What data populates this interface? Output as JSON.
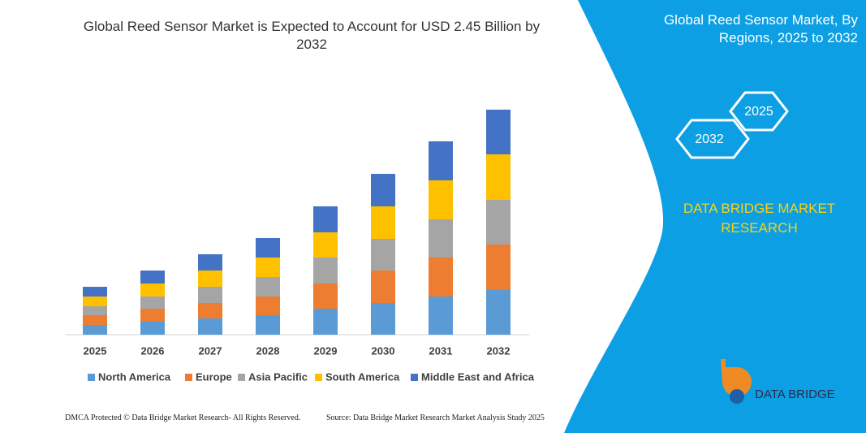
{
  "chart_data": {
    "type": "stacked_bar",
    "title": "Global Reed Sensor Market is Expected to Account for USD 2.45 Billion by 2032",
    "categories": [
      "2025",
      "2026",
      "2027",
      "2028",
      "2029",
      "2030",
      "2031",
      "2032"
    ],
    "series": [
      {
        "name": "North America",
        "color": "#5b9bd5",
        "values": [
          12,
          16,
          20,
          24,
          32,
          39,
          47,
          55
        ]
      },
      {
        "name": "Europe",
        "color": "#ed7d31",
        "values": [
          12,
          16,
          19,
          23,
          31,
          40,
          48,
          56
        ]
      },
      {
        "name": "Asia Pacific",
        "color": "#a5a5a5",
        "values": [
          11,
          15,
          20,
          24,
          32,
          39,
          47,
          55
        ]
      },
      {
        "name": "South America",
        "color": "#ffc000",
        "values": [
          12,
          16,
          20,
          24,
          31,
          40,
          48,
          56
        ]
      },
      {
        "name": "Middle East and Africa",
        "color": "#4472c4",
        "values": [
          12,
          16,
          20,
          24,
          32,
          40,
          48,
          55
        ]
      }
    ],
    "legend": "bottom"
  },
  "panel": {
    "title": "Global Reed Sensor Market, By Regions, 2025 to 2032",
    "hex_labels": [
      "2025",
      "2032"
    ],
    "brand": "DATA BRIDGE MARKET RESEARCH"
  },
  "footer": {
    "copyright": "DMCA Protected © Data Bridge Market Research- All Rights Reserved.",
    "source": "Source: Data Bridge Market Research Market Analysis Study 2025"
  },
  "logo": {
    "text": "DATA BRIDGE"
  }
}
